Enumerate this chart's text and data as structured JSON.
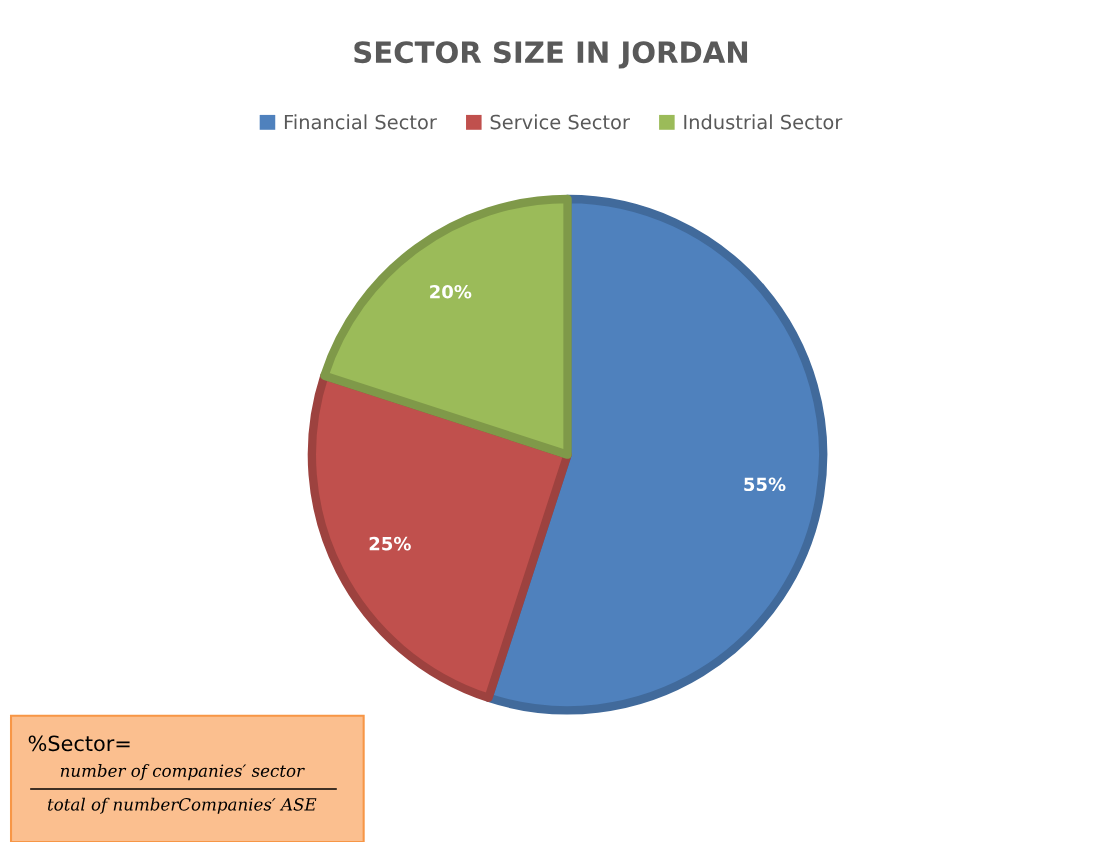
{
  "chart_data": {
    "type": "pie",
    "title": "SECTOR SIZE IN JORDAN",
    "categories": [
      "Financial Sector",
      "Service Sector",
      "Industrial Sector"
    ],
    "values": [
      55,
      25,
      20
    ],
    "colors": [
      "#4f81bd",
      "#c0504d",
      "#9bbb59"
    ],
    "value_labels": [
      "55%",
      "25%",
      "20%"
    ],
    "legend": "top",
    "annotations": [
      "%Sector=",
      "number of companies′ sector",
      "total of numberCompanies′ ASE"
    ]
  }
}
